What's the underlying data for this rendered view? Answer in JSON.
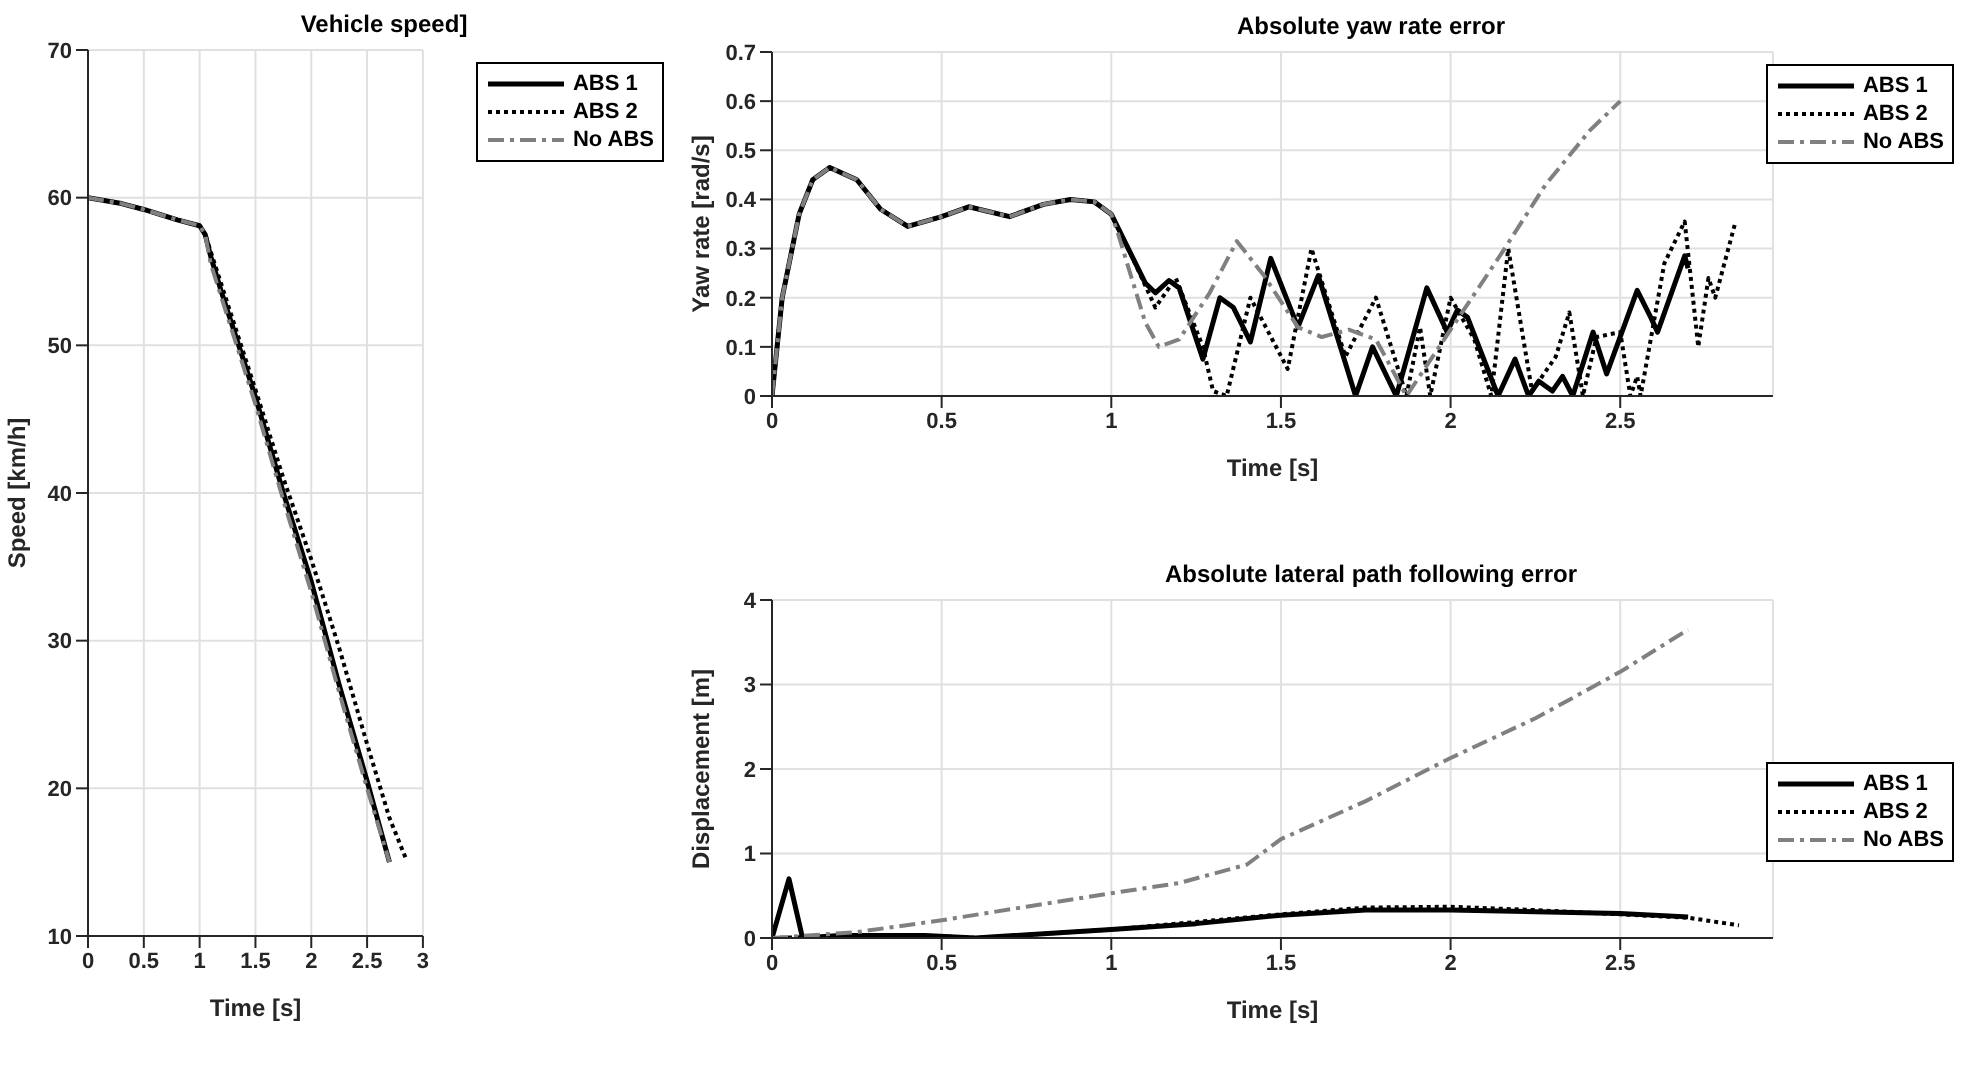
{
  "chart_data": [
    {
      "type": "line",
      "title": "Vehicle speed]",
      "xlabel": "Time [s]",
      "ylabel": "Speed [km/h]",
      "xlim": [
        0,
        3
      ],
      "xticks": [
        0,
        0.5,
        1,
        1.5,
        2,
        2.5,
        3
      ],
      "ylim": [
        10,
        70
      ],
      "yticks": [
        10,
        20,
        30,
        40,
        50,
        60,
        70
      ],
      "grid": true,
      "legend": "top right",
      "series": [
        {
          "name": "ABS 1",
          "color": "#000000",
          "line_style": "solid",
          "x": [
            0,
            0.3,
            0.5,
            0.8,
            1.0,
            1.05,
            1.1,
            1.2,
            1.5,
            1.75,
            2.0,
            2.25,
            2.5,
            2.7
          ],
          "values": [
            60,
            59.6,
            59.2,
            58.5,
            58.1,
            57.5,
            56,
            53.5,
            46.5,
            40,
            34,
            27,
            20.5,
            15
          ]
        },
        {
          "name": "ABS 2",
          "color": "#000000",
          "line_style": "dotted",
          "x": [
            0,
            0.3,
            0.5,
            0.8,
            1.0,
            1.05,
            1.2,
            1.5,
            1.75,
            2.0,
            2.25,
            2.5,
            2.7,
            2.85
          ],
          "values": [
            60,
            59.6,
            59.2,
            58.5,
            58.1,
            57.5,
            54,
            47,
            41,
            35.5,
            29.5,
            23,
            18,
            15.2
          ]
        },
        {
          "name": "No ABS",
          "color": "#808080",
          "line_style": "dashed",
          "x": [
            0,
            0.3,
            0.5,
            0.8,
            1.0,
            1.05,
            1.1,
            1.5,
            1.75,
            2.0,
            2.25,
            2.5,
            2.7
          ],
          "values": [
            60,
            59.6,
            59.2,
            58.5,
            58.1,
            57.5,
            55.5,
            46,
            39.5,
            33.3,
            26.5,
            20,
            15
          ]
        }
      ]
    },
    {
      "type": "line",
      "title": "Absolute yaw rate error",
      "xlabel": "Time [s]",
      "ylabel": "Yaw rate [rad/s]",
      "xlim": [
        0,
        2.95
      ],
      "xticks": [
        0,
        0.5,
        1,
        1.5,
        2,
        2.5
      ],
      "ylim": [
        0,
        0.7
      ],
      "yticks": [
        0,
        0.1,
        0.2,
        0.3,
        0.4,
        0.5,
        0.6,
        0.7
      ],
      "grid": true,
      "legend": "top right",
      "series": [
        {
          "name": "ABS 1",
          "color": "#000000",
          "line_style": "solid",
          "x": [
            0,
            0.03,
            0.08,
            0.12,
            0.17,
            0.25,
            0.32,
            0.4,
            0.5,
            0.58,
            0.7,
            0.8,
            0.88,
            0.95,
            1.0,
            1.05,
            1.1,
            1.13,
            1.17,
            1.2,
            1.27,
            1.32,
            1.36,
            1.41,
            1.47,
            1.55,
            1.61,
            1.72,
            1.77,
            1.84,
            1.93,
            1.99,
            2.02,
            2.05,
            2.14,
            2.17,
            2.19,
            2.23,
            2.26,
            2.3,
            2.33,
            2.36,
            2.42,
            2.46,
            2.55,
            2.59,
            2.61,
            2.69,
            2.7
          ],
          "values": [
            0,
            0.2,
            0.37,
            0.44,
            0.465,
            0.44,
            0.38,
            0.345,
            0.365,
            0.385,
            0.365,
            0.39,
            0.4,
            0.395,
            0.37,
            0.3,
            0.23,
            0.21,
            0.235,
            0.22,
            0.075,
            0.2,
            0.18,
            0.11,
            0.28,
            0.14,
            0.245,
            0,
            0.1,
            0,
            0.22,
            0.13,
            0.175,
            0.16,
            0,
            0.045,
            0.075,
            0,
            0.03,
            0.01,
            0.04,
            0,
            0.13,
            0.045,
            0.215,
            0.16,
            0.13,
            0.285,
            0.26
          ]
        },
        {
          "name": "ABS 2",
          "color": "#000000",
          "line_style": "dotted",
          "x": [
            0,
            0.03,
            0.08,
            0.12,
            0.17,
            0.25,
            0.32,
            0.4,
            0.5,
            0.58,
            0.7,
            0.8,
            0.88,
            0.95,
            1.0,
            1.05,
            1.13,
            1.19,
            1.27,
            1.3,
            1.34,
            1.41,
            1.52,
            1.59,
            1.69,
            1.78,
            1.87,
            1.91,
            1.94,
            2.0,
            2.07,
            2.12,
            2.17,
            2.24,
            2.31,
            2.35,
            2.39,
            2.43,
            2.5,
            2.53,
            2.55,
            2.56,
            2.63,
            2.69,
            2.73,
            2.76,
            2.78,
            2.84
          ],
          "values": [
            0,
            0.2,
            0.37,
            0.44,
            0.465,
            0.44,
            0.38,
            0.345,
            0.365,
            0.385,
            0.365,
            0.39,
            0.4,
            0.395,
            0.37,
            0.3,
            0.18,
            0.24,
            0.1,
            0.01,
            0,
            0.2,
            0.055,
            0.3,
            0.08,
            0.2,
            0,
            0.14,
            0,
            0.2,
            0.115,
            0,
            0.3,
            0.01,
            0.08,
            0.17,
            0,
            0.12,
            0.13,
            0,
            0.04,
            0,
            0.27,
            0.355,
            0.1,
            0.24,
            0.2,
            0.355
          ]
        },
        {
          "name": "No ABS",
          "color": "#808080",
          "line_style": "dashed",
          "x": [
            0,
            0.03,
            0.08,
            0.12,
            0.17,
            0.25,
            0.32,
            0.4,
            0.5,
            0.58,
            0.7,
            0.8,
            0.88,
            0.95,
            1.0,
            1.02,
            1.1,
            1.14,
            1.2,
            1.29,
            1.37,
            1.45,
            1.55,
            1.62,
            1.7,
            1.78,
            1.87,
            2.0,
            2.15,
            2.28,
            2.41,
            2.5
          ],
          "values": [
            0,
            0.2,
            0.37,
            0.44,
            0.465,
            0.44,
            0.38,
            0.345,
            0.365,
            0.385,
            0.365,
            0.39,
            0.4,
            0.395,
            0.37,
            0.33,
            0.15,
            0.1,
            0.115,
            0.21,
            0.315,
            0.245,
            0.14,
            0.12,
            0.135,
            0.115,
            0,
            0.135,
            0.29,
            0.43,
            0.54,
            0.6
          ]
        }
      ]
    },
    {
      "type": "line",
      "title": "Absolute lateral path following error",
      "xlabel": "Time [s]",
      "ylabel": "Displacement [m]",
      "xlim": [
        0,
        2.95
      ],
      "xticks": [
        0,
        0.5,
        1,
        1.5,
        2,
        2.5
      ],
      "ylim": [
        0,
        4
      ],
      "yticks": [
        0,
        1,
        2,
        3,
        4
      ],
      "grid": true,
      "legend": "right",
      "series": [
        {
          "name": "ABS 1",
          "color": "#000000",
          "line_style": "solid",
          "x": [
            0,
            0.05,
            0.09,
            0.2,
            0.45,
            0.6,
            1,
            1.25,
            1.5,
            1.75,
            2,
            2.25,
            2.5,
            2.7
          ],
          "values": [
            0,
            0.7,
            0,
            0.03,
            0.03,
            0,
            0.1,
            0.17,
            0.27,
            0.33,
            0.33,
            0.31,
            0.29,
            0.25
          ]
        },
        {
          "name": "ABS 2",
          "color": "#000000",
          "line_style": "dotted",
          "x": [
            0,
            0.2,
            0.5,
            0.6,
            1,
            1.5,
            1.75,
            2,
            2.25,
            2.5,
            2.7,
            2.85
          ],
          "values": [
            0,
            0.02,
            0.02,
            0,
            0.1,
            0.28,
            0.36,
            0.37,
            0.33,
            0.28,
            0.24,
            0.15
          ]
        },
        {
          "name": "No ABS",
          "color": "#808080",
          "line_style": "dashed",
          "x": [
            0,
            0.25,
            0.5,
            0.75,
            1,
            1.2,
            1.4,
            1.5,
            1.75,
            2,
            2.25,
            2.5,
            2.7
          ],
          "values": [
            0,
            0.07,
            0.21,
            0.37,
            0.53,
            0.65,
            0.87,
            1.17,
            1.62,
            2.13,
            2.6,
            3.15,
            3.65
          ]
        }
      ]
    }
  ]
}
